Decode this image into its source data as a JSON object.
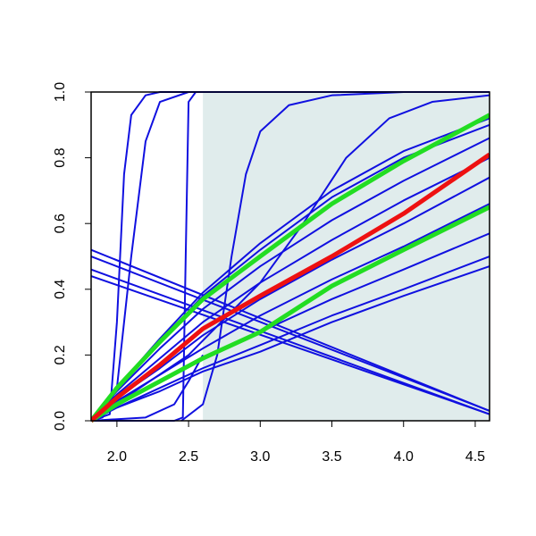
{
  "chart_data": {
    "type": "line",
    "xlim": [
      1.82,
      4.6
    ],
    "ylim": [
      0,
      1
    ],
    "xticks": [
      {
        "value": 2,
        "label": "2.0"
      },
      2.5,
      {
        "value": 3,
        "label": "3.0"
      },
      3.5,
      {
        "value": 4,
        "label": "4.0"
      },
      4.5
    ],
    "yticks": [
      {
        "value": 0,
        "label": "0.0"
      },
      0.2,
      0.4,
      0.6,
      0.8,
      {
        "value": 1,
        "label": "1.0"
      }
    ],
    "shade": {
      "xlim": [
        2.6,
        4.6
      ],
      "color": "#e0ecec"
    },
    "series": [
      {
        "color": "#1010e0",
        "linewidth": 2,
        "x": [
          1.82,
          2.0,
          2.3,
          2.6,
          3.0,
          3.5,
          4.0,
          4.6
        ],
        "values": [
          0,
          0.1,
          0.25,
          0.39,
          0.54,
          0.7,
          0.82,
          0.92
        ]
      },
      {
        "color": "#1010e0",
        "linewidth": 2,
        "x": [
          1.82,
          2.0,
          2.3,
          2.6,
          3.0,
          3.5,
          4.0,
          4.6
        ],
        "values": [
          0,
          0.1,
          0.24,
          0.38,
          0.52,
          0.68,
          0.8,
          0.9
        ]
      },
      {
        "color": "#1010e0",
        "linewidth": 2,
        "x": [
          1.82,
          2.0,
          2.3,
          2.6,
          3.0,
          3.5,
          4.0,
          4.6
        ],
        "values": [
          0,
          0.09,
          0.22,
          0.34,
          0.47,
          0.61,
          0.73,
          0.86
        ]
      },
      {
        "color": "#1010e0",
        "linewidth": 2,
        "x": [
          1.82,
          2.0,
          2.3,
          2.6,
          3.0,
          3.5,
          4.0,
          4.6
        ],
        "values": [
          0,
          0.08,
          0.19,
          0.3,
          0.42,
          0.55,
          0.67,
          0.8
        ]
      },
      {
        "color": "#1010e0",
        "linewidth": 2,
        "x": [
          1.82,
          2.0,
          2.3,
          2.6,
          3.0,
          3.5,
          4.0,
          4.6
        ],
        "values": [
          0,
          0.07,
          0.16,
          0.26,
          0.37,
          0.49,
          0.6,
          0.74
        ]
      },
      {
        "color": "#1010e0",
        "linewidth": 2,
        "x": [
          1.82,
          2.0,
          2.3,
          2.6,
          3.0,
          3.5,
          4.0,
          4.6
        ],
        "values": [
          0,
          0.06,
          0.14,
          0.22,
          0.32,
          0.43,
          0.53,
          0.66
        ]
      },
      {
        "color": "#1010e0",
        "linewidth": 2,
        "x": [
          1.82,
          2.0,
          2.3,
          2.6,
          3.0,
          3.5,
          4.0,
          4.6
        ],
        "values": [
          0,
          0.05,
          0.12,
          0.19,
          0.27,
          0.37,
          0.46,
          0.57
        ]
      },
      {
        "color": "#1010e0",
        "linewidth": 2,
        "x": [
          1.82,
          2.0,
          2.3,
          2.6,
          3.0,
          3.5,
          4.0,
          4.6
        ],
        "values": [
          0,
          0.04,
          0.1,
          0.16,
          0.23,
          0.32,
          0.4,
          0.5
        ]
      },
      {
        "color": "#1010e0",
        "linewidth": 2,
        "x": [
          1.82,
          2.0,
          2.3,
          2.6,
          3.0,
          3.5,
          4.0,
          4.6
        ],
        "values": [
          0,
          0.04,
          0.09,
          0.15,
          0.21,
          0.3,
          0.38,
          0.47
        ]
      },
      {
        "color": "#1010e0",
        "linewidth": 2,
        "x": [
          1.82,
          4.6
        ],
        "values": [
          0.52,
          0.03
        ]
      },
      {
        "color": "#1010e0",
        "linewidth": 2,
        "x": [
          1.82,
          4.6
        ],
        "values": [
          0.5,
          0.03
        ]
      },
      {
        "color": "#1010e0",
        "linewidth": 2,
        "x": [
          1.82,
          4.6
        ],
        "values": [
          0.46,
          0.02
        ]
      },
      {
        "color": "#1010e0",
        "linewidth": 2,
        "x": [
          1.82,
          4.6
        ],
        "values": [
          0.44,
          0.02
        ]
      },
      {
        "color": "#1010e0",
        "linewidth": 2,
        "x": [
          1.82,
          1.95,
          2.0,
          2.05,
          2.1,
          2.2,
          2.3,
          4.6
        ],
        "values": [
          0,
          0.02,
          0.3,
          0.75,
          0.93,
          0.99,
          1,
          1
        ]
      },
      {
        "color": "#1010e0",
        "linewidth": 2,
        "x": [
          1.82,
          1.9,
          2.0,
          2.1,
          2.2,
          2.3,
          2.5
        ],
        "values": [
          0,
          0.01,
          0.1,
          0.5,
          0.85,
          0.97,
          1
        ]
      },
      {
        "color": "#1010e0",
        "linewidth": 2,
        "x": [
          1.82,
          2.4,
          2.46,
          2.48,
          2.5,
          2.55,
          4.6
        ],
        "values": [
          0,
          0,
          0.01,
          0.5,
          0.97,
          1,
          1
        ]
      },
      {
        "color": "#1010e0",
        "linewidth": 2,
        "x": [
          2.45,
          2.6,
          2.7,
          2.8,
          2.9,
          3.0,
          3.2,
          3.5,
          4.0,
          4.6
        ],
        "values": [
          0,
          0.05,
          0.2,
          0.5,
          0.75,
          0.88,
          0.96,
          0.99,
          1,
          1
        ]
      },
      {
        "color": "#1010e0",
        "linewidth": 2,
        "x": [
          1.82,
          2.5,
          3.0,
          3.3,
          3.6,
          3.9,
          4.2,
          4.6
        ],
        "values": [
          0,
          0.2,
          0.42,
          0.6,
          0.8,
          0.92,
          0.97,
          0.99
        ]
      },
      {
        "color": "#1010e0",
        "linewidth": 2,
        "x": [
          1.82,
          2.2,
          2.4,
          2.5,
          2.6
        ],
        "values": [
          0,
          0.01,
          0.05,
          0.12,
          0.2
        ]
      },
      {
        "color": "#22dd22",
        "linewidth": 5,
        "x": [
          1.82,
          2.0,
          2.3,
          2.6,
          3.0,
          3.5,
          4.0,
          4.6
        ],
        "values": [
          0,
          0.1,
          0.24,
          0.37,
          0.5,
          0.66,
          0.79,
          0.93
        ]
      },
      {
        "color": "#22dd22",
        "linewidth": 5,
        "x": [
          1.82,
          2.0,
          2.3,
          2.6,
          3.0,
          3.5,
          4.0,
          4.6
        ],
        "values": [
          0,
          0.05,
          0.12,
          0.19,
          0.27,
          0.41,
          0.52,
          0.65
        ]
      },
      {
        "color": "#ee1111",
        "linewidth": 5,
        "x": [
          1.82,
          2.0,
          2.3,
          2.6,
          3.0,
          3.5,
          4.0,
          4.6
        ],
        "values": [
          0,
          0.07,
          0.17,
          0.28,
          0.38,
          0.5,
          0.63,
          0.81
        ]
      }
    ]
  }
}
